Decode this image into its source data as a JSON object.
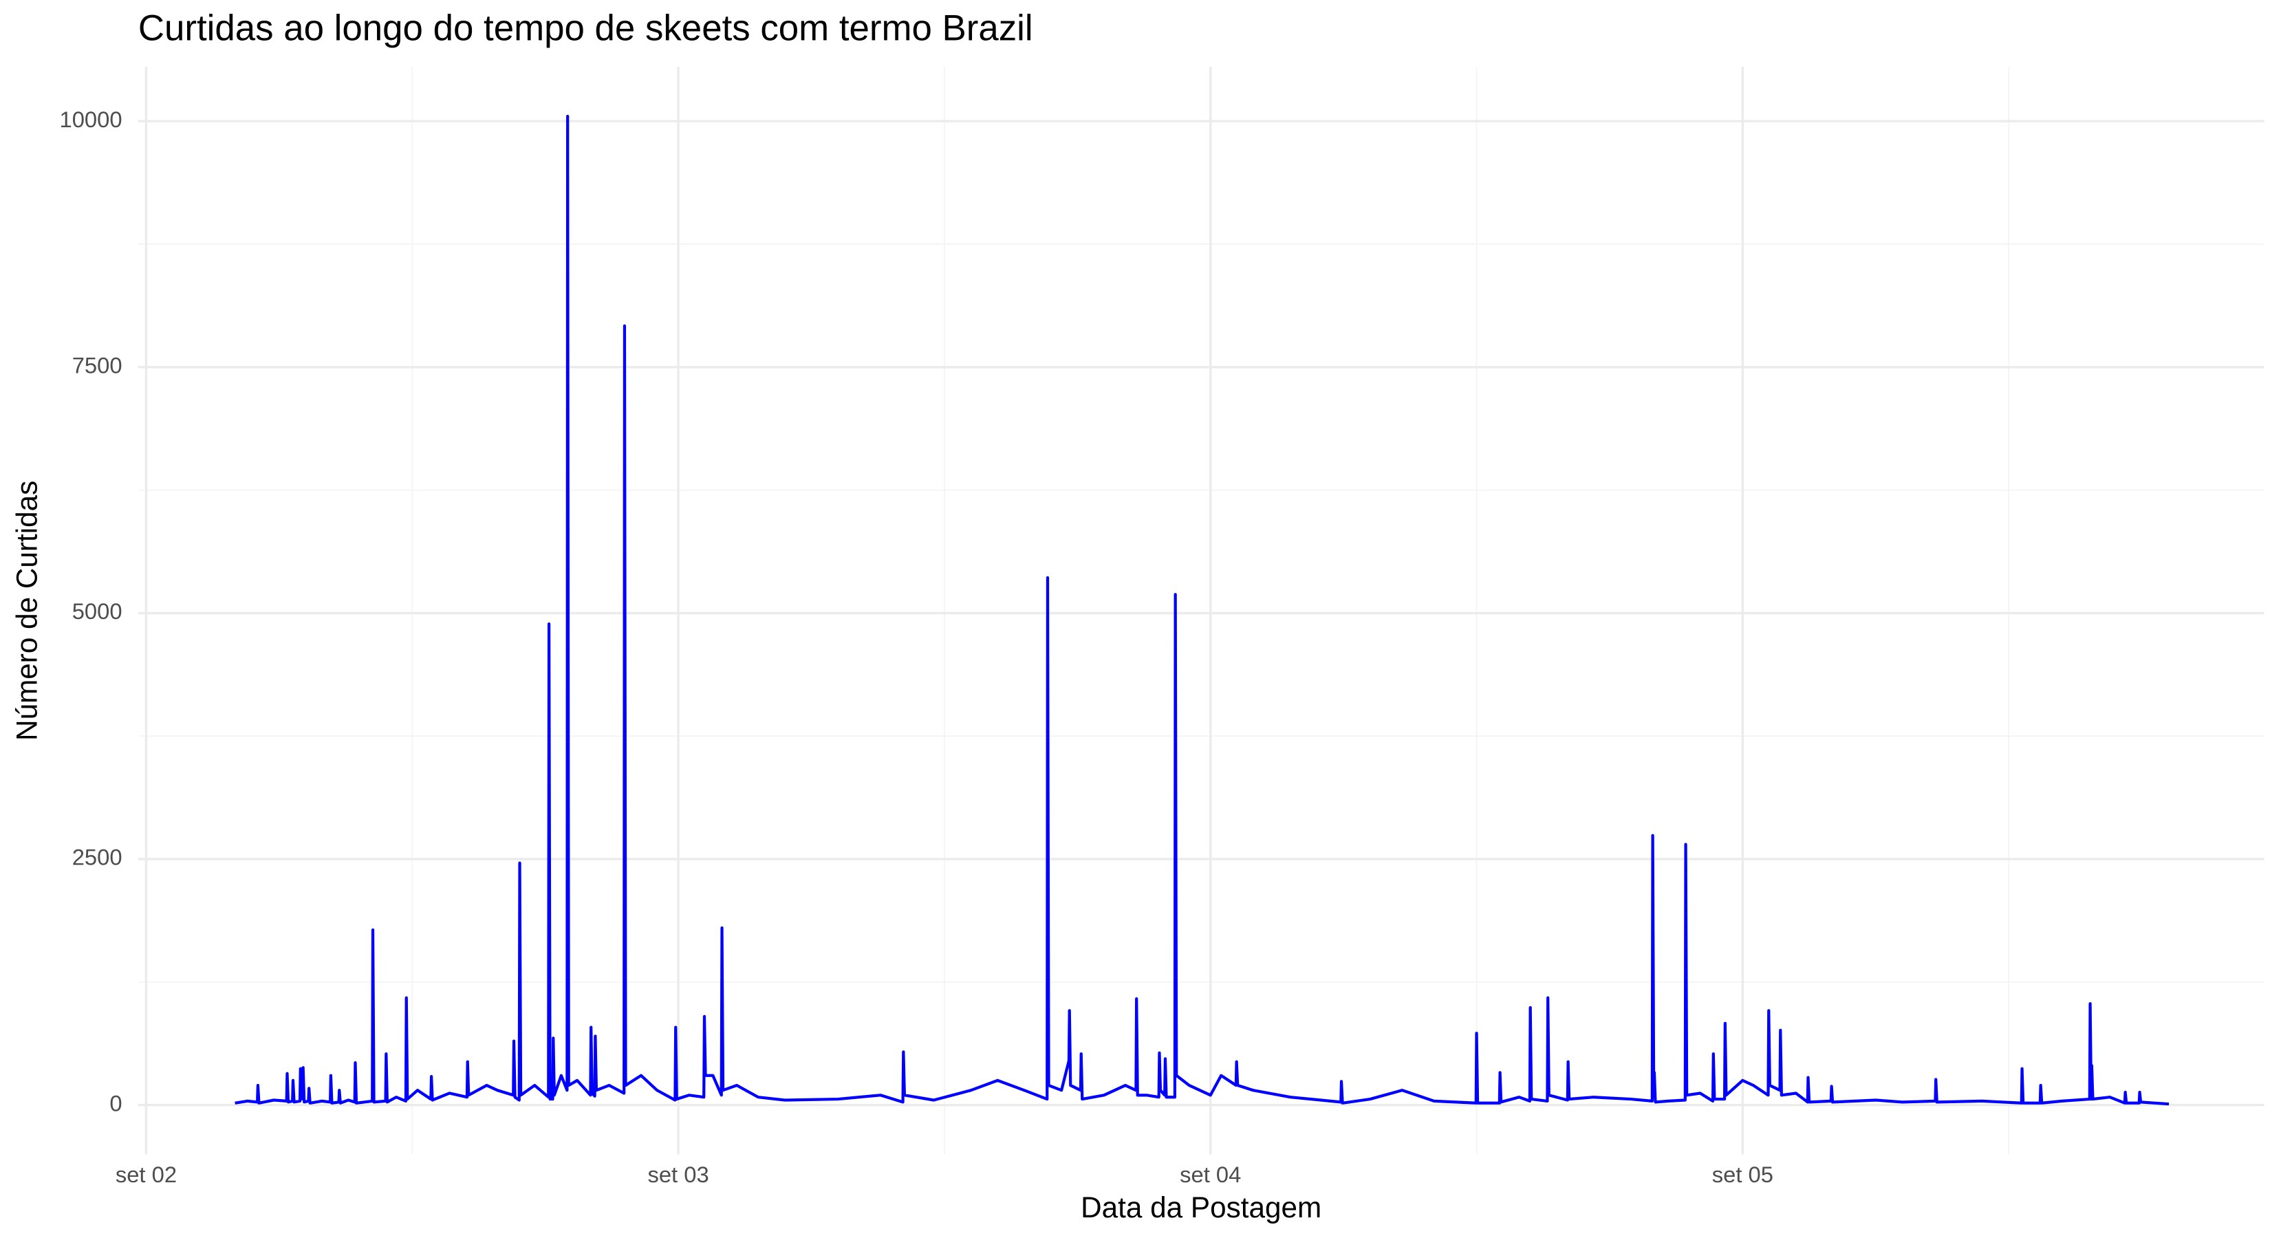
{
  "chart_data": {
    "type": "line",
    "title": "Curtidas ao longo do tempo de skeets com termo Brazil",
    "x_label": "Data da Postagem",
    "y_label": "Número de Curtidas",
    "color": "#0000ff",
    "grid": true,
    "xlim": [
      1.985,
      5.98
    ],
    "ylim": [
      -502,
      10552
    ],
    "xticks": [
      {
        "value": 2,
        "label": "set 02"
      },
      {
        "value": 3,
        "label": "set 03"
      },
      {
        "value": 4,
        "label": "set 04"
      },
      {
        "value": 5,
        "label": "set 05"
      }
    ],
    "yticks": [
      0,
      2500,
      5000,
      7500,
      10000
    ],
    "x": [
      2.167,
      2.19,
      2.209,
      2.21,
      2.212,
      2.24,
      2.264,
      2.265,
      2.267,
      2.275,
      2.276,
      2.278,
      2.289,
      2.29,
      2.292,
      2.295,
      2.297,
      2.305,
      2.306,
      2.308,
      2.33,
      2.346,
      2.347,
      2.349,
      2.362,
      2.363,
      2.365,
      2.38,
      2.392,
      2.393,
      2.395,
      2.425,
      2.426,
      2.428,
      2.45,
      2.451,
      2.453,
      2.47,
      2.488,
      2.489,
      2.491,
      2.51,
      2.535,
      2.536,
      2.538,
      2.57,
      2.603,
      2.604,
      2.606,
      2.64,
      2.66,
      2.69,
      2.691,
      2.693,
      2.701,
      2.702,
      2.704,
      2.73,
      2.756,
      2.757,
      2.759,
      2.764,
      2.765,
      2.767,
      2.78,
      2.791,
      2.792,
      2.794,
      2.81,
      2.835,
      2.836,
      2.838,
      2.843,
      2.844,
      2.846,
      2.87,
      2.898,
      2.899,
      2.901,
      2.93,
      2.96,
      2.994,
      2.995,
      2.997,
      3.02,
      3.048,
      3.049,
      3.051,
      3.065,
      3.081,
      3.082,
      3.084,
      3.11,
      3.15,
      3.2,
      3.3,
      3.38,
      3.422,
      3.423,
      3.425,
      3.48,
      3.55,
      3.6,
      3.65,
      3.693,
      3.694,
      3.696,
      3.72,
      3.734,
      3.735,
      3.737,
      3.756,
      3.757,
      3.759,
      3.8,
      3.84,
      3.86,
      3.861,
      3.863,
      3.88,
      3.903,
      3.904,
      3.906,
      3.914,
      3.915,
      3.917,
      3.933,
      3.934,
      3.936,
      3.96,
      4.0,
      4.02,
      4.048,
      4.049,
      4.051,
      4.08,
      4.15,
      4.245,
      4.246,
      4.248,
      4.3,
      4.36,
      4.42,
      4.499,
      4.5,
      4.502,
      4.543,
      4.544,
      4.546,
      4.58,
      4.6,
      4.601,
      4.603,
      4.633,
      4.634,
      4.636,
      4.671,
      4.672,
      4.674,
      4.72,
      4.79,
      4.83,
      4.831,
      4.833,
      4.834,
      4.836,
      4.86,
      4.892,
      4.893,
      4.895,
      4.92,
      4.944,
      4.945,
      4.947,
      4.966,
      4.967,
      4.969,
      5.0,
      5.02,
      5.048,
      5.049,
      5.051,
      5.07,
      5.071,
      5.073,
      5.1,
      5.122,
      5.123,
      5.125,
      5.166,
      5.167,
      5.169,
      5.25,
      5.3,
      5.362,
      5.363,
      5.365,
      5.45,
      5.524,
      5.525,
      5.527,
      5.559,
      5.56,
      5.562,
      5.6,
      5.652,
      5.653,
      5.655,
      5.656,
      5.658,
      5.69,
      5.718,
      5.719,
      5.721,
      5.745,
      5.746,
      5.748,
      5.801
    ],
    "values": [
      20,
      40,
      30,
      200,
      20,
      50,
      40,
      320,
      30,
      40,
      250,
      30,
      40,
      370,
      60,
      380,
      30,
      40,
      170,
      20,
      40,
      30,
      300,
      20,
      30,
      150,
      20,
      50,
      30,
      430,
      20,
      40,
      1780,
      30,
      40,
      520,
      30,
      80,
      40,
      1090,
      60,
      150,
      60,
      290,
      50,
      120,
      80,
      440,
      100,
      200,
      150,
      100,
      650,
      80,
      50,
      2460,
      100,
      200,
      80,
      4890,
      60,
      60,
      680,
      100,
      300,
      150,
      10050,
      200,
      250,
      100,
      790,
      120,
      90,
      700,
      150,
      200,
      120,
      7920,
      200,
      300,
      150,
      50,
      790,
      60,
      100,
      80,
      900,
      300,
      300,
      100,
      1800,
      150,
      200,
      80,
      50,
      60,
      100,
      30,
      540,
      100,
      50,
      150,
      250,
      150,
      60,
      5360,
      200,
      150,
      450,
      960,
      200,
      150,
      520,
      60,
      100,
      200,
      150,
      1080,
      100,
      100,
      80,
      530,
      150,
      100,
      470,
      80,
      80,
      5190,
      300,
      200,
      100,
      300,
      200,
      440,
      200,
      150,
      80,
      30,
      240,
      20,
      60,
      150,
      40,
      20,
      730,
      20,
      20,
      330,
      30,
      80,
      40,
      990,
      60,
      40,
      1090,
      100,
      50,
      440,
      60,
      80,
      60,
      40,
      2740,
      80,
      330,
      30,
      40,
      50,
      2650,
      100,
      120,
      40,
      520,
      60,
      60,
      830,
      100,
      250,
      200,
      100,
      960,
      200,
      150,
      760,
      100,
      120,
      30,
      280,
      30,
      40,
      190,
      30,
      50,
      30,
      40,
      260,
      30,
      40,
      20,
      370,
      20,
      20,
      200,
      20,
      40,
      60,
      1030,
      60,
      400,
      60,
      80,
      20,
      130,
      20,
      20,
      130,
      30,
      10
    ]
  }
}
